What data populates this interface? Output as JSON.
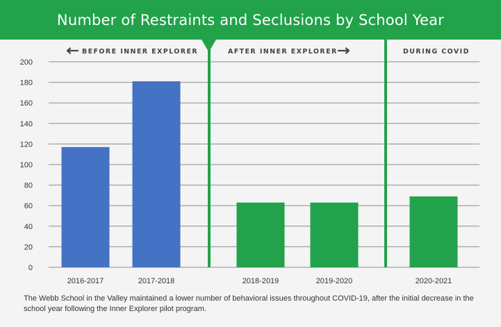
{
  "header": {
    "title": "Number of Restraints and Seclusions by School Year"
  },
  "segments": {
    "before": "BEFORE INNER EXPLORER",
    "after": "AFTER INNER EXPLORER",
    "covid": "DURING COVID"
  },
  "caption": "The Webb School in the Valley maintained a lower number of behavioral issues throughout COVID-19, after the initial decrease in the school year following the Inner Explorer pilot program.",
  "colors": {
    "header": "#22a24a",
    "bar_before": "#4472c4",
    "bar_after": "#22a24a",
    "divider": "#22a24a"
  },
  "chart_data": {
    "type": "bar",
    "title": "Number of Restraints and Seclusions by School Year",
    "categories": [
      "2016-2017",
      "2017-2018",
      "2018-2019",
      "2019-2020",
      "2020-2021"
    ],
    "values": [
      117,
      181,
      63,
      63,
      69
    ],
    "bar_colors": [
      "#4472c4",
      "#4472c4",
      "#22a24a",
      "#22a24a",
      "#22a24a"
    ],
    "ylim": [
      0,
      200
    ],
    "yticks": [
      0,
      20,
      40,
      60,
      80,
      100,
      120,
      140,
      160,
      180,
      200
    ],
    "xlabel": "",
    "ylabel": "",
    "grid": true
  }
}
